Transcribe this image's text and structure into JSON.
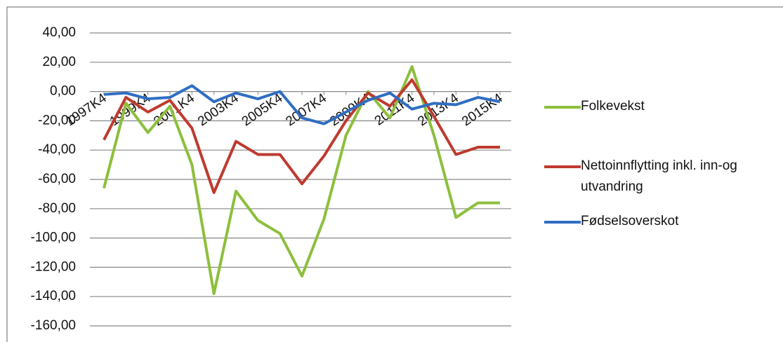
{
  "chart_data": {
    "type": "line",
    "categories": [
      "1997K4",
      null,
      "1999K4",
      null,
      "2001K4",
      null,
      "2003K4",
      null,
      "2005K4",
      null,
      "2007K4",
      null,
      "2009K4",
      null,
      "2011K4",
      null,
      "2013K4",
      null,
      "2015K4"
    ],
    "series": [
      {
        "name": "Folkevekst",
        "color": "#8dbf3c",
        "values": [
          -66,
          -8,
          -28,
          -10,
          -50,
          -138,
          -68,
          -88,
          -97,
          -126,
          -87,
          -30,
          0,
          -18,
          17,
          -30,
          -86,
          -76,
          -76
        ]
      },
      {
        "name": "Nettoinnflytting inkl. inn-og utvandring",
        "color": "#be3a2f",
        "values": [
          -33,
          -4,
          -14,
          -6,
          -25,
          -69,
          -34,
          -43,
          -43,
          -63,
          -44,
          -20,
          -1,
          -10,
          8,
          -17,
          -43,
          -38,
          -38
        ]
      },
      {
        "name": "Fødselsoverskot",
        "color": "#2f6ec2",
        "values": [
          -2,
          -1,
          -5,
          -4,
          4,
          -7,
          -1,
          -5,
          0,
          -18,
          -22,
          -14,
          -6,
          -1,
          -12,
          -8,
          -9,
          -4,
          -7
        ]
      }
    ],
    "ylim": [
      -160,
      40
    ],
    "yticks": [
      {
        "value": 40,
        "label": "40,00"
      },
      {
        "value": 20,
        "label": "20,00"
      },
      {
        "value": 0,
        "label": "0,00"
      },
      {
        "value": -20,
        "label": "-20,00"
      },
      {
        "value": -40,
        "label": "-40,00"
      },
      {
        "value": -60,
        "label": "-60,00"
      },
      {
        "value": -80,
        "label": "-80,00"
      },
      {
        "value": -100,
        "label": "-100,00"
      },
      {
        "value": -120,
        "label": "-120,00"
      },
      {
        "value": -140,
        "label": "-140,00"
      },
      {
        "value": -160,
        "label": "-160,00"
      }
    ],
    "grid": true
  }
}
